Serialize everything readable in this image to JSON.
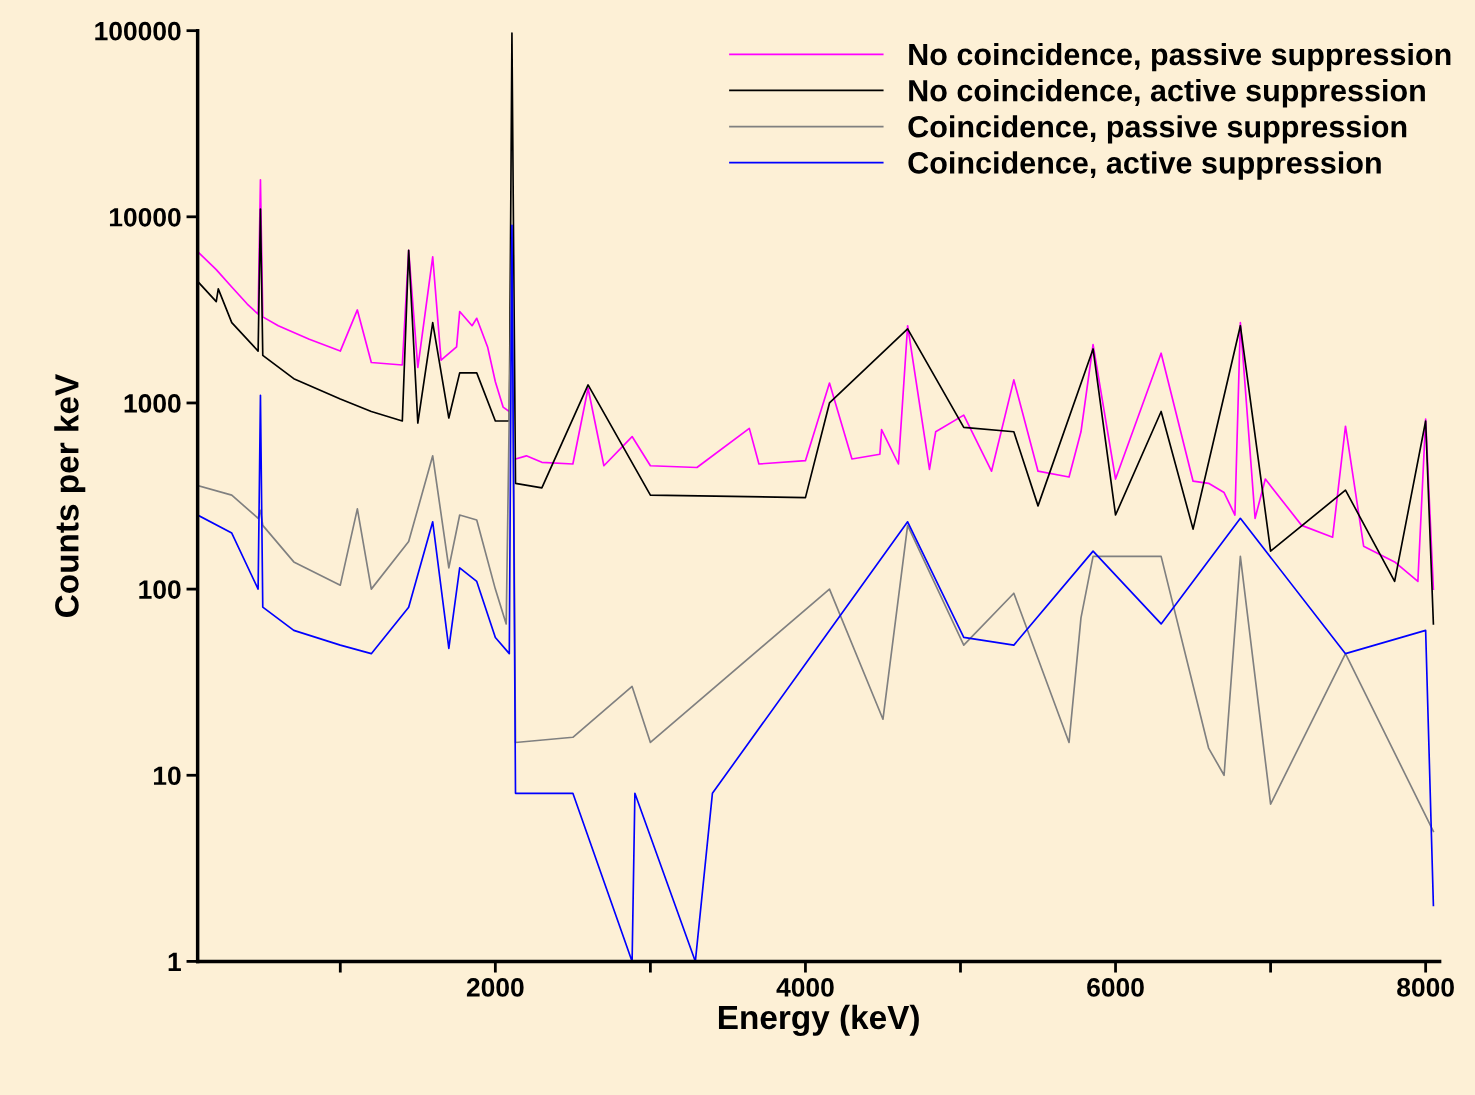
{
  "chart_data": {
    "type": "line",
    "xlabel": "Energy (keV)",
    "ylabel": "Counts per keV",
    "log": "y",
    "legend": "top right",
    "grid": false,
    "marker": "none",
    "line_style": "solid",
    "xlim": [
      80,
      8090
    ],
    "ylim": [
      1,
      100000
    ],
    "xticks": [
      {
        "value": 1000,
        "label": null
      },
      2000,
      {
        "value": 3000,
        "label": null
      },
      4000,
      {
        "value": 5000,
        "label": null
      },
      6000,
      {
        "value": 7000,
        "label": null
      },
      8000
    ],
    "yticks": [
      1,
      10,
      100,
      1000,
      10000,
      100000
    ],
    "series": [
      {
        "name": "No coincidence, passive suppression",
        "color": "#ff00ff",
        "x": [
          80,
          200,
          300,
          400,
          470,
          485,
          500,
          600,
          800,
          1000,
          1110,
          1200,
          1400,
          1441,
          1500,
          1596,
          1650,
          1750,
          1770,
          1850,
          1880,
          1950,
          2000,
          2050,
          2090,
          2107,
          2130,
          2200,
          2300,
          2500,
          2598,
          2700,
          2882,
          3000,
          3300,
          3638,
          3700,
          4000,
          4155,
          4300,
          4480,
          4491,
          4600,
          4659,
          4800,
          4840,
          5021,
          5200,
          5344,
          5500,
          5700,
          5777,
          5855,
          6000,
          6294,
          6500,
          6600,
          6700,
          6770,
          6805,
          6900,
          6966,
          7200,
          7400,
          7483,
          7600,
          7800,
          7950,
          8000,
          8050
        ],
        "values": [
          6500,
          5200,
          4200,
          3400,
          3000,
          15800,
          2900,
          2600,
          2200,
          1900,
          3160,
          1650,
          1600,
          6600,
          1550,
          6100,
          1700,
          2000,
          3100,
          2600,
          2850,
          2000,
          1300,
          950,
          900,
          null,
          500,
          520,
          480,
          470,
          1200,
          460,
          660,
          460,
          450,
          730,
          470,
          490,
          1280,
          500,
          530,
          720,
          470,
          2600,
          440,
          700,
          860,
          430,
          1330,
          430,
          400,
          700,
          2060,
          390,
          1850,
          380,
          370,
          330,
          250,
          2700,
          240,
          390,
          220,
          190,
          750,
          170,
          140,
          110,
          820,
          100
        ]
      },
      {
        "name": "No coincidence, active suppression",
        "color": "#000000",
        "x": [
          80,
          200,
          213,
          300,
          470,
          485,
          500,
          700,
          1000,
          1200,
          1400,
          1441,
          1500,
          1596,
          1700,
          1770,
          1880,
          2000,
          2090,
          2107,
          2130,
          2300,
          2598,
          3000,
          4000,
          4155,
          4659,
          5021,
          5344,
          5500,
          5855,
          6000,
          6294,
          6500,
          6805,
          7000,
          7483,
          7800,
          8000,
          8050
        ],
        "values": [
          4500,
          3500,
          4100,
          2700,
          1900,
          11000,
          1800,
          1350,
          1050,
          900,
          800,
          6600,
          780,
          2700,
          830,
          1450,
          1450,
          800,
          800,
          97000,
          370,
          350,
          1250,
          320,
          310,
          1000,
          2500,
          740,
          700,
          280,
          1950,
          250,
          900,
          210,
          2600,
          160,
          340,
          110,
          800,
          65
        ]
      },
      {
        "name": "Coincidence, passive suppression",
        "color": "#808080",
        "x": [
          80,
          300,
          470,
          485,
          500,
          700,
          1000,
          1110,
          1200,
          1441,
          1596,
          1700,
          1770,
          1880,
          2000,
          2070,
          2107,
          2130,
          2500,
          2882,
          3000,
          4155,
          4500,
          4659,
          5021,
          5344,
          5700,
          5777,
          5855,
          6294,
          6600,
          6700,
          6805,
          7000,
          7483,
          8050
        ],
        "values": [
          360,
          320,
          240,
          265,
          220,
          140,
          105,
          270,
          100,
          180,
          520,
          130,
          250,
          235,
          100,
          65,
          8500,
          15,
          16,
          30,
          15,
          100,
          20,
          220,
          50,
          95,
          15,
          70,
          150,
          150,
          14,
          10,
          150,
          7,
          45,
          5
        ]
      },
      {
        "name": "Coincidence, active suppression",
        "color": "#0000ff",
        "x": [
          80,
          300,
          470,
          485,
          500,
          700,
          1000,
          1200,
          1441,
          1596,
          1700,
          1770,
          1880,
          2000,
          2090,
          2107,
          2130,
          2500,
          2882,
          2900,
          3290,
          3400,
          4155,
          4659,
          5021,
          5344,
          5855,
          6294,
          6805,
          7483,
          8000,
          8050
        ],
        "values": [
          250,
          200,
          100,
          1100,
          80,
          60,
          50,
          45,
          80,
          230,
          48,
          130,
          110,
          55,
          45,
          9000,
          8,
          8,
          1,
          8,
          1,
          8,
          60,
          230,
          55,
          50,
          160,
          65,
          240,
          45,
          60,
          2
        ]
      }
    ]
  }
}
